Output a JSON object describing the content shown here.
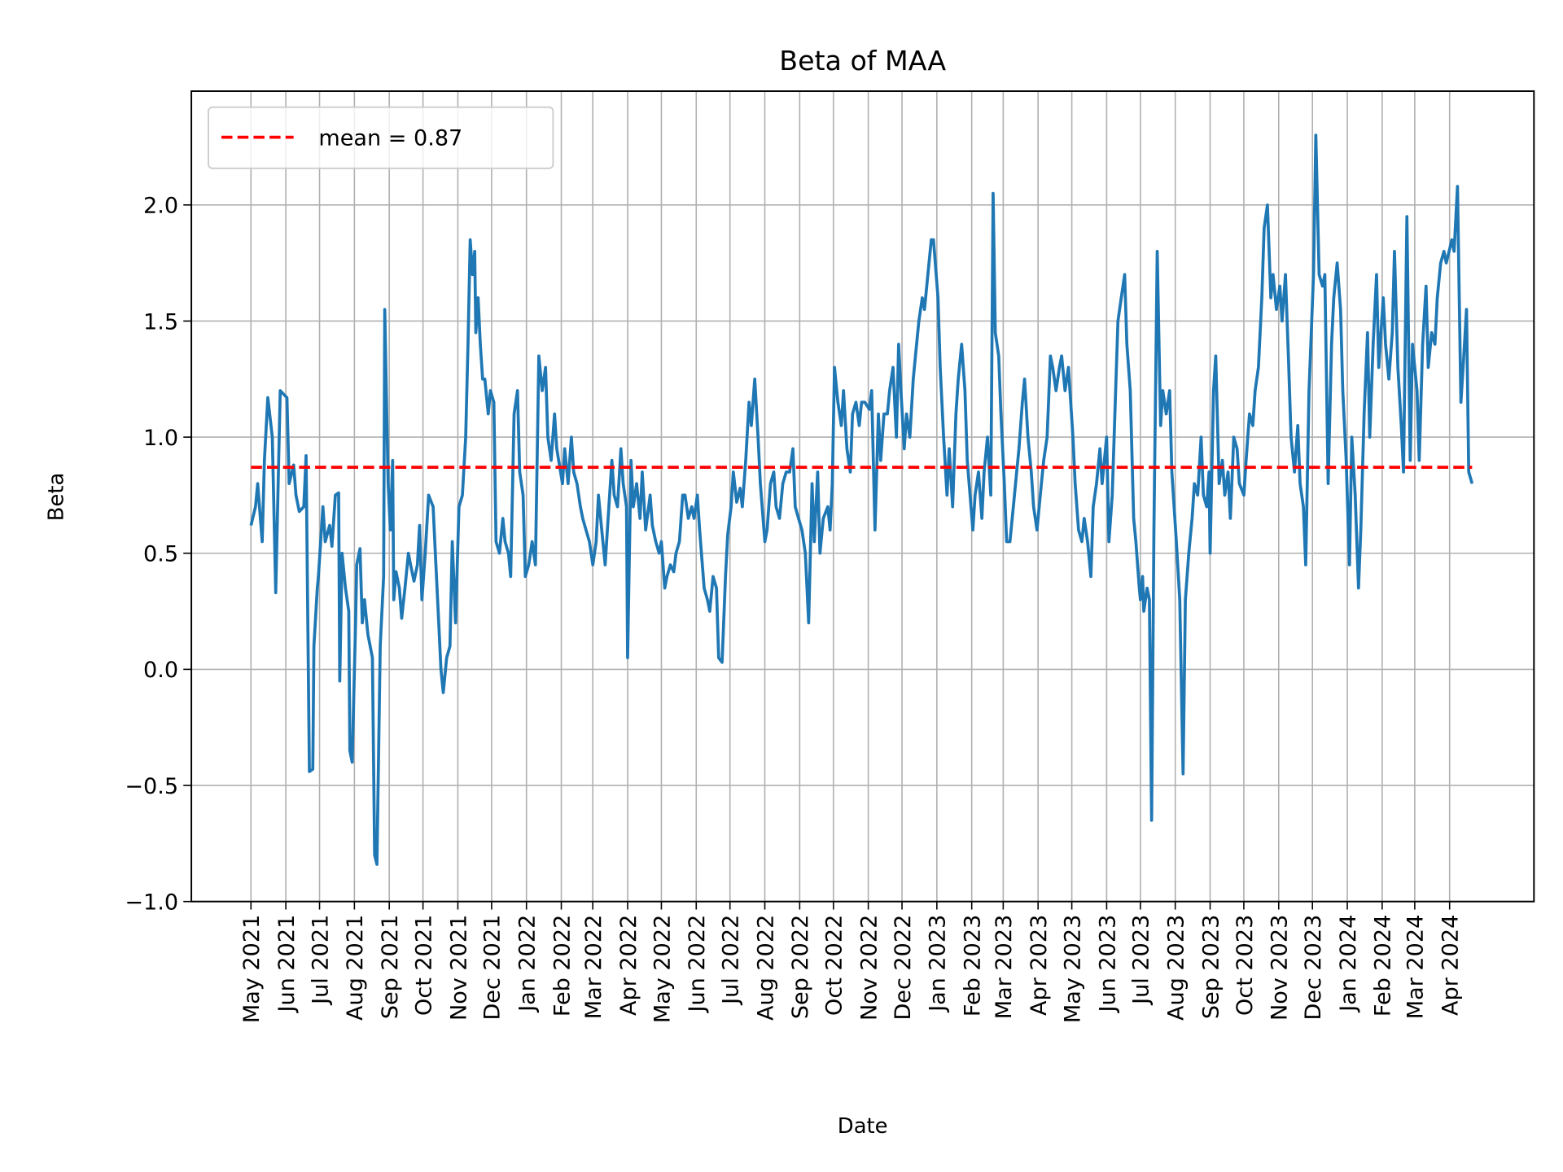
{
  "chart_data": {
    "type": "line",
    "title": "Beta of MAA",
    "xlabel": "Date",
    "ylabel": "Beta",
    "xlim": [
      "2021-03-09",
      "2024-06-15"
    ],
    "ylim": [
      -1.0,
      2.49
    ],
    "grid": true,
    "legend_placement": "top-left",
    "x_ticks": [
      "2021-05-01",
      "2021-06-01",
      "2021-07-01",
      "2021-08-01",
      "2021-09-01",
      "2021-10-01",
      "2021-11-01",
      "2021-12-01",
      "2022-01-01",
      "2022-02-01",
      "2022-03-01",
      "2022-04-01",
      "2022-05-01",
      "2022-06-01",
      "2022-07-01",
      "2022-08-01",
      "2022-09-01",
      "2022-10-01",
      "2022-11-01",
      "2022-12-01",
      "2023-01-01",
      "2023-02-01",
      "2023-03-01",
      "2023-04-01",
      "2023-05-01",
      "2023-06-01",
      "2023-07-01",
      "2023-08-01",
      "2023-09-01",
      "2023-10-01",
      "2023-11-01",
      "2023-12-01",
      "2024-01-01",
      "2024-02-01",
      "2024-03-01",
      "2024-04-01"
    ],
    "x_tick_labels": [
      "May 2021",
      "Jun 2021",
      "Jul 2021",
      "Aug 2021",
      "Sep 2021",
      "Oct 2021",
      "Nov 2021",
      "Dec 2021",
      "Jan 2022",
      "Feb 2022",
      "Mar 2022",
      "Apr 2022",
      "May 2022",
      "Jun 2022",
      "Jul 2022",
      "Aug 2022",
      "Sep 2022",
      "Oct 2022",
      "Nov 2022",
      "Dec 2022",
      "Jan 2023",
      "Feb 2023",
      "Mar 2023",
      "Apr 2023",
      "May 2023",
      "Jun 2023",
      "Jul 2023",
      "Aug 2023",
      "Sep 2023",
      "Oct 2023",
      "Nov 2023",
      "Dec 2023",
      "Jan 2024",
      "Feb 2024",
      "Mar 2024",
      "Apr 2024"
    ],
    "y_ticks": [
      -1.0,
      -0.5,
      0.0,
      0.5,
      1.0,
      1.5,
      2.0
    ],
    "y_tick_labels": [
      "−1.0",
      "−0.5",
      "0.0",
      "0.5",
      "1.0",
      "1.5",
      "2.0"
    ],
    "series": [
      {
        "color": "#1f77b4",
        "style": "solid",
        "x": [
          "2021-05-01",
          "2021-05-05",
          "2021-05-07",
          "2021-05-11",
          "2021-05-13",
          "2021-05-16",
          "2021-05-20",
          "2021-05-23",
          "2021-05-27",
          "2021-06-02",
          "2021-06-04",
          "2021-06-08",
          "2021-06-10",
          "2021-06-13",
          "2021-06-17",
          "2021-06-19",
          "2021-06-22",
          "2021-06-25",
          "2021-06-26",
          "2021-06-29",
          "2021-06-30",
          "2021-07-04",
          "2021-07-06",
          "2021-07-10",
          "2021-07-12",
          "2021-07-15",
          "2021-07-18",
          "2021-07-19",
          "2021-07-21",
          "2021-07-24",
          "2021-07-27",
          "2021-07-28",
          "2021-07-30",
          "2021-08-02",
          "2021-08-03",
          "2021-08-06",
          "2021-08-08",
          "2021-08-10",
          "2021-08-13",
          "2021-08-17",
          "2021-08-19",
          "2021-08-21",
          "2021-08-24",
          "2021-08-27",
          "2021-08-28",
          "2021-08-31",
          "2021-09-02",
          "2021-09-04",
          "2021-09-05",
          "2021-09-07",
          "2021-09-10",
          "2021-09-12",
          "2021-09-15",
          "2021-09-18",
          "2021-09-20",
          "2021-09-23",
          "2021-09-26",
          "2021-09-28",
          "2021-09-30",
          "2021-10-03",
          "2021-10-06",
          "2021-10-10",
          "2021-10-12",
          "2021-10-15",
          "2021-10-17",
          "2021-10-19",
          "2021-10-22",
          "2021-10-25",
          "2021-10-27",
          "2021-10-30",
          "2021-11-02",
          "2021-11-05",
          "2021-11-08",
          "2021-11-10",
          "2021-11-12",
          "2021-11-14",
          "2021-11-16",
          "2021-11-17",
          "2021-11-19",
          "2021-11-21",
          "2021-11-23",
          "2021-11-25",
          "2021-11-28",
          "2021-11-30",
          "2021-12-03",
          "2021-12-05",
          "2021-12-08",
          "2021-12-11",
          "2021-12-13",
          "2021-12-16",
          "2021-12-18",
          "2021-12-21",
          "2021-12-24",
          "2021-12-26",
          "2021-12-29",
          "2021-12-31",
          "2022-01-03",
          "2022-01-06",
          "2022-01-09",
          "2022-01-12",
          "2022-01-15",
          "2022-01-18",
          "2022-01-20",
          "2022-01-23",
          "2022-01-26",
          "2022-01-28",
          "2022-02-02",
          "2022-02-04",
          "2022-02-07",
          "2022-02-10",
          "2022-02-12",
          "2022-02-15",
          "2022-02-18",
          "2022-02-20",
          "2022-02-23",
          "2022-02-26",
          "2022-03-01",
          "2022-03-04",
          "2022-03-06",
          "2022-03-09",
          "2022-03-12",
          "2022-03-14",
          "2022-03-18",
          "2022-03-20",
          "2022-03-23",
          "2022-03-26",
          "2022-03-28",
          "2022-03-31",
          "2022-04-01",
          "2022-04-04",
          "2022-04-06",
          "2022-04-09",
          "2022-04-12",
          "2022-04-14",
          "2022-04-17",
          "2022-04-21",
          "2022-04-23",
          "2022-04-26",
          "2022-04-29",
          "2022-05-01",
          "2022-05-04",
          "2022-05-06",
          "2022-05-09",
          "2022-05-12",
          "2022-05-14",
          "2022-05-17",
          "2022-05-20",
          "2022-05-22",
          "2022-05-25",
          "2022-05-28",
          "2022-05-30",
          "2022-06-02",
          "2022-06-04",
          "2022-06-08",
          "2022-06-11",
          "2022-06-13",
          "2022-06-16",
          "2022-06-19",
          "2022-06-21",
          "2022-06-24",
          "2022-06-27",
          "2022-06-29",
          "2022-07-02",
          "2022-07-04",
          "2022-07-07",
          "2022-07-10",
          "2022-07-12",
          "2022-07-15",
          "2022-07-18",
          "2022-07-20",
          "2022-07-23",
          "2022-07-26",
          "2022-07-28",
          "2022-08-01",
          "2022-08-03",
          "2022-08-06",
          "2022-08-09",
          "2022-08-11",
          "2022-08-14",
          "2022-08-17",
          "2022-08-20",
          "2022-08-23",
          "2022-08-26",
          "2022-08-28",
          "2022-08-31",
          "2022-09-03",
          "2022-09-06",
          "2022-09-09",
          "2022-09-12",
          "2022-09-14",
          "2022-09-17",
          "2022-09-19",
          "2022-09-22",
          "2022-09-26",
          "2022-09-28",
          "2022-09-30",
          "2022-10-02",
          "2022-10-05",
          "2022-10-08",
          "2022-10-10",
          "2022-10-13",
          "2022-10-16",
          "2022-10-18",
          "2022-10-21",
          "2022-10-24",
          "2022-10-26",
          "2022-10-29",
          "2022-11-02",
          "2022-11-04",
          "2022-11-07",
          "2022-11-10",
          "2022-11-12",
          "2022-11-15",
          "2022-11-18",
          "2022-11-20",
          "2022-11-23",
          "2022-11-26",
          "2022-11-28",
          "2022-11-30",
          "2022-12-03",
          "2022-12-05",
          "2022-12-08",
          "2022-12-11",
          "2022-12-13",
          "2022-12-16",
          "2022-12-19",
          "2022-12-21",
          "2022-12-24",
          "2022-12-27",
          "2022-12-29",
          "2023-01-02",
          "2023-01-04",
          "2023-01-07",
          "2023-01-10",
          "2023-01-12",
          "2023-01-15",
          "2023-01-18",
          "2023-01-20",
          "2023-01-23",
          "2023-01-26",
          "2023-01-28",
          "2023-02-02",
          "2023-02-04",
          "2023-02-07",
          "2023-02-10",
          "2023-02-12",
          "2023-02-15",
          "2023-02-18",
          "2023-02-20",
          "2023-02-22",
          "2023-02-25",
          "2023-02-27",
          "2023-03-02",
          "2023-03-04",
          "2023-03-07",
          "2023-03-10",
          "2023-03-12",
          "2023-03-15",
          "2023-03-18",
          "2023-03-20",
          "2023-03-23",
          "2023-03-26",
          "2023-03-28",
          "2023-03-31",
          "2023-04-01",
          "2023-04-04",
          "2023-04-06",
          "2023-04-09",
          "2023-04-12",
          "2023-04-14",
          "2023-04-17",
          "2023-04-20",
          "2023-04-22",
          "2023-04-25",
          "2023-04-28",
          "2023-05-02",
          "2023-05-04",
          "2023-05-07",
          "2023-05-10",
          "2023-05-12",
          "2023-05-15",
          "2023-05-18",
          "2023-05-20",
          "2023-05-23",
          "2023-05-26",
          "2023-05-28",
          "2023-06-01",
          "2023-06-03",
          "2023-06-06",
          "2023-06-09",
          "2023-06-11",
          "2023-06-14",
          "2023-06-17",
          "2023-06-19",
          "2023-06-22",
          "2023-06-25",
          "2023-06-27",
          "2023-06-30",
          "2023-07-01",
          "2023-07-03",
          "2023-07-04",
          "2023-07-07",
          "2023-07-09",
          "2023-07-11",
          "2023-07-13",
          "2023-07-16",
          "2023-07-19",
          "2023-07-21",
          "2023-07-24",
          "2023-07-27",
          "2023-07-29",
          "2023-08-02",
          "2023-08-05",
          "2023-08-08",
          "2023-08-10",
          "2023-08-13",
          "2023-08-16",
          "2023-08-18",
          "2023-08-21",
          "2023-08-24",
          "2023-08-26",
          "2023-08-29",
          "2023-08-31",
          "2023-09-01",
          "2023-09-04",
          "2023-09-06",
          "2023-09-09",
          "2023-09-12",
          "2023-09-14",
          "2023-09-17",
          "2023-09-19",
          "2023-09-22",
          "2023-09-25",
          "2023-09-27",
          "2023-10-01",
          "2023-10-03",
          "2023-10-06",
          "2023-10-09",
          "2023-10-11",
          "2023-10-14",
          "2023-10-17",
          "2023-10-19",
          "2023-10-22",
          "2023-10-25",
          "2023-10-27",
          "2023-10-30",
          "2023-11-02",
          "2023-11-04",
          "2023-11-07",
          "2023-11-10",
          "2023-11-12",
          "2023-11-15",
          "2023-11-18",
          "2023-11-20",
          "2023-11-23",
          "2023-11-25",
          "2023-11-28",
          "2023-12-02",
          "2023-12-04",
          "2023-12-07",
          "2023-12-10",
          "2023-12-12",
          "2023-12-15",
          "2023-12-18",
          "2023-12-20",
          "2023-12-23",
          "2023-12-26",
          "2023-12-28",
          "2023-12-31",
          "2024-01-03",
          "2024-01-05",
          "2024-01-08",
          "2024-01-11",
          "2024-01-13",
          "2024-01-16",
          "2024-01-19",
          "2024-01-21",
          "2024-01-24",
          "2024-01-27",
          "2024-01-29",
          "2024-02-02",
          "2024-02-04",
          "2024-02-07",
          "2024-02-10",
          "2024-02-12",
          "2024-02-15",
          "2024-02-18",
          "2024-02-20",
          "2024-02-23",
          "2024-02-26",
          "2024-02-28",
          "2024-03-03",
          "2024-03-05",
          "2024-03-08",
          "2024-03-11",
          "2024-03-13",
          "2024-03-16",
          "2024-03-19",
          "2024-03-21",
          "2024-03-24",
          "2024-03-27",
          "2024-03-29",
          "2024-04-03",
          "2024-04-05",
          "2024-04-08",
          "2024-04-11",
          "2024-04-13",
          "2024-04-16",
          "2024-04-18",
          "2024-04-21"
        ],
        "y": [
          0.62,
          0.7,
          0.8,
          0.55,
          0.9,
          1.17,
          1.0,
          0.33,
          1.2,
          1.17,
          0.8,
          0.88,
          0.75,
          0.68,
          0.7,
          0.92,
          -0.44,
          -0.43,
          0.1,
          0.35,
          0.4,
          0.7,
          0.55,
          0.62,
          0.53,
          0.75,
          0.76,
          -0.05,
          0.5,
          0.35,
          0.25,
          -0.35,
          -0.4,
          0.2,
          0.45,
          0.52,
          0.2,
          0.3,
          0.15,
          0.05,
          -0.8,
          -0.84,
          0.1,
          0.4,
          1.55,
          0.8,
          0.6,
          0.9,
          0.3,
          0.42,
          0.35,
          0.22,
          0.35,
          0.5,
          0.45,
          0.38,
          0.45,
          0.62,
          0.3,
          0.5,
          0.75,
          0.7,
          0.5,
          0.2,
          0.0,
          -0.1,
          0.05,
          0.1,
          0.55,
          0.2,
          0.7,
          0.75,
          1.0,
          1.4,
          1.85,
          1.7,
          1.8,
          1.45,
          1.6,
          1.4,
          1.25,
          1.25,
          1.1,
          1.2,
          1.15,
          0.55,
          0.5,
          0.65,
          0.55,
          0.5,
          0.4,
          1.1,
          1.2,
          0.85,
          0.75,
          0.4,
          0.45,
          0.55,
          0.45,
          1.35,
          1.2,
          1.3,
          1.0,
          0.9,
          1.1,
          0.95,
          0.8,
          0.95,
          0.8,
          1.0,
          0.85,
          0.8,
          0.7,
          0.65,
          0.6,
          0.55,
          0.45,
          0.55,
          0.75,
          0.6,
          0.45,
          0.6,
          0.9,
          0.75,
          0.7,
          0.95,
          0.8,
          0.7,
          0.05,
          0.9,
          0.7,
          0.8,
          0.65,
          0.85,
          0.6,
          0.75,
          0.62,
          0.55,
          0.5,
          0.55,
          0.35,
          0.4,
          0.45,
          0.42,
          0.5,
          0.55,
          0.75,
          0.75,
          0.65,
          0.7,
          0.65,
          0.75,
          0.6,
          0.35,
          0.3,
          0.25,
          0.4,
          0.35,
          0.05,
          0.03,
          0.4,
          0.58,
          0.7,
          0.85,
          0.72,
          0.78,
          0.7,
          0.9,
          1.15,
          1.05,
          1.25,
          1.0,
          0.8,
          0.55,
          0.6,
          0.8,
          0.85,
          0.7,
          0.65,
          0.8,
          0.85,
          0.85,
          0.95,
          0.7,
          0.65,
          0.6,
          0.5,
          0.2,
          0.8,
          0.55,
          0.85,
          0.5,
          0.65,
          0.7,
          0.6,
          0.8,
          1.3,
          1.15,
          1.05,
          1.2,
          0.95,
          0.85,
          1.1,
          1.15,
          1.05,
          1.15,
          1.15,
          1.12,
          1.2,
          0.6,
          1.1,
          0.9,
          1.1,
          1.1,
          1.2,
          1.3,
          1.0,
          1.4,
          1.2,
          0.95,
          1.1,
          1.0,
          1.25,
          1.35,
          1.5,
          1.6,
          1.55,
          1.7,
          1.85,
          1.85,
          1.6,
          1.3,
          1.0,
          0.75,
          0.95,
          0.7,
          1.1,
          1.25,
          1.4,
          1.2,
          0.9,
          0.6,
          0.75,
          0.85,
          0.65,
          0.85,
          1.0,
          0.75,
          2.05,
          1.45,
          1.35,
          1.1,
          0.8,
          0.55,
          0.55,
          0.7,
          0.8,
          0.95,
          1.15,
          1.25,
          1.0,
          0.85,
          0.7,
          0.6,
          0.65,
          0.8,
          0.9,
          1.0,
          1.35,
          1.3,
          1.2,
          1.3,
          1.35,
          1.2,
          1.3,
          1.0,
          0.8,
          0.6,
          0.55,
          0.65,
          0.55,
          0.4,
          0.7,
          0.8,
          0.95,
          0.8,
          1.0,
          0.55,
          0.75,
          1.2,
          1.5,
          1.6,
          1.7,
          1.4,
          1.2,
          0.65,
          0.55,
          0.35,
          0.3,
          0.4,
          0.25,
          0.35,
          0.3,
          -0.65,
          0.6,
          1.8,
          1.05,
          1.2,
          1.1,
          1.2,
          0.85,
          0.55,
          0.3,
          -0.45,
          0.3,
          0.5,
          0.65,
          0.8,
          0.75,
          1.0,
          0.75,
          0.7,
          0.85,
          0.5,
          1.2,
          1.35,
          0.8,
          0.9,
          0.75,
          0.85,
          0.65,
          1.0,
          0.95,
          0.8,
          0.75,
          0.9,
          1.1,
          1.05,
          1.2,
          1.3,
          1.6,
          1.9,
          2.0,
          1.6,
          1.7,
          1.55,
          1.65,
          1.5,
          1.7,
          1.3,
          1.0,
          0.85,
          1.05,
          0.8,
          0.7,
          0.45,
          1.2,
          1.7,
          2.3,
          1.7,
          1.65,
          1.7,
          0.8,
          1.4,
          1.6,
          1.75,
          1.55,
          1.2,
          0.9,
          0.45,
          1.0,
          0.75,
          0.35,
          0.6,
          1.1,
          1.45,
          1.0,
          1.4,
          1.7,
          1.3,
          1.6,
          1.4,
          1.25,
          1.45,
          1.8,
          1.3,
          1.05,
          0.85,
          1.95,
          0.9,
          1.4,
          1.2,
          0.9,
          1.4,
          1.65,
          1.3,
          1.45,
          1.4,
          1.6,
          1.75,
          1.8,
          1.75,
          1.85,
          1.8,
          2.08,
          1.15,
          1.3,
          1.55,
          0.85,
          0.8
        ]
      },
      {
        "name": "mean = 0.87",
        "color": "#ff0000",
        "style": "dashed",
        "x": [
          "2021-05-01",
          "2024-04-21"
        ],
        "y": [
          0.87,
          0.87
        ]
      }
    ],
    "legend": [
      {
        "label": "mean = 0.87",
        "color": "#ff0000",
        "style": "dashed"
      }
    ]
  }
}
